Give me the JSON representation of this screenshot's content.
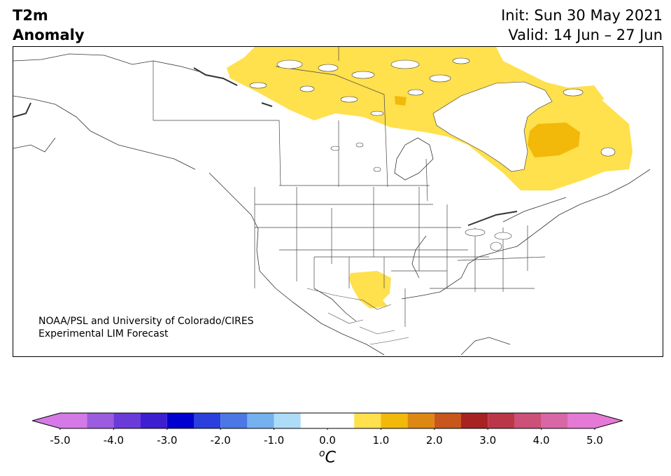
{
  "title": {
    "line1": "T2m",
    "line2": "Anomaly"
  },
  "dates": {
    "init": "Init: Sun 30 May 2021",
    "valid": "Valid: 14 Jun – 27 Jun"
  },
  "credit": {
    "line1": "NOAA/PSL and University of Colorado/CIRES",
    "line2": "Experimental LIM Forecast"
  },
  "colorbar": {
    "ticks": [
      "-5.0",
      "-4.0",
      "-3.0",
      "-2.0",
      "-1.0",
      "0.0",
      "1.0",
      "2.0",
      "3.0",
      "4.0",
      "5.0"
    ],
    "unit_sup": "o",
    "unit_base": "C",
    "bins": [
      {
        "lo": -4.5,
        "hi": -4.0,
        "color": "#9c5ce0"
      },
      {
        "lo": -4.0,
        "hi": -3.5,
        "color": "#6a3bd9"
      },
      {
        "lo": -3.5,
        "hi": -3.0,
        "color": "#3d1ed0"
      },
      {
        "lo": -3.0,
        "hi": -2.5,
        "color": "#0000d0"
      },
      {
        "lo": -2.5,
        "hi": -2.0,
        "color": "#2a3fdc"
      },
      {
        "lo": -2.0,
        "hi": -1.5,
        "color": "#4b78e4"
      },
      {
        "lo": -1.5,
        "hi": -1.0,
        "color": "#75b0ef"
      },
      {
        "lo": -1.0,
        "hi": -0.5,
        "color": "#addcf9"
      },
      {
        "lo": -0.5,
        "hi": 0.5,
        "color": "#ffffff"
      },
      {
        "lo": 0.5,
        "hi": 1.0,
        "color": "#ffe04d"
      },
      {
        "lo": 1.0,
        "hi": 1.5,
        "color": "#f2b90a"
      },
      {
        "lo": 1.5,
        "hi": 2.0,
        "color": "#de8814"
      },
      {
        "lo": 2.0,
        "hi": 2.5,
        "color": "#c9561c"
      },
      {
        "lo": 2.5,
        "hi": 3.0,
        "color": "#a82222"
      },
      {
        "lo": 3.0,
        "hi": 3.5,
        "color": "#bb3748"
      },
      {
        "lo": 3.5,
        "hi": 4.0,
        "color": "#cc5078"
      },
      {
        "lo": 4.0,
        "hi": 4.5,
        "color": "#d967a6"
      }
    ],
    "under_color": "#d579e6",
    "over_color": "#e57ad6",
    "min": -5.0,
    "max": 5.0
  },
  "anomaly_colors": {
    "weak_warm": "#ffe04d",
    "moderate_warm": "#f2b90a"
  }
}
